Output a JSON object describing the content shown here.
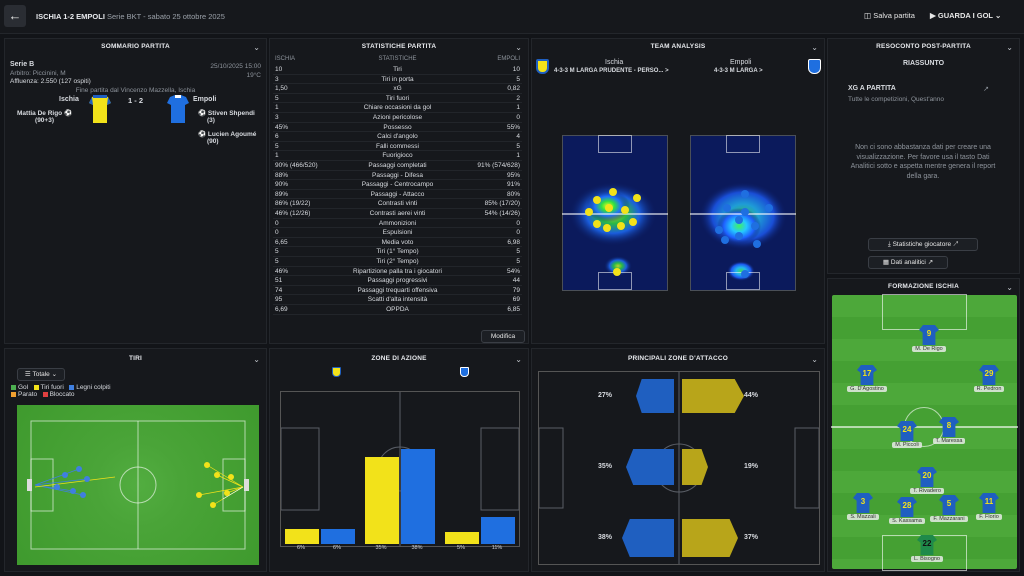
{
  "header": {
    "title": "ISCHIA 1-2 EMPOLI",
    "competition": "Serie BKT",
    "date": "sabato 25 ottobre 2025",
    "save_label": "Salva partita",
    "goals_label": "GUARDA I GOL"
  },
  "summary": {
    "title": "SOMMARIO PARTITA",
    "league": "Serie B",
    "referee": "Arbitro: Piccinini, M",
    "attendance": "Affluenza: 2.550 (127 ospiti)",
    "datetime": "25/10/2025 15:00",
    "temp": "19°C",
    "end_note": "Fine partita dal Vincenzo Mazzella, Ischia",
    "home": "Ischia",
    "away": "Empoli",
    "score": "1 - 2",
    "home_scorer": "Mattia De Rigo",
    "home_scorer_min": "(90+3)",
    "away_scorer1": "Stiven Shpendi",
    "away_scorer1_min": "(3)",
    "away_scorer2": "Lucien Agoumé",
    "away_scorer2_min": "(90)"
  },
  "stats": {
    "title": "STATISTICHE PARTITA",
    "h_home": "ISCHIA",
    "h_mid": "STATISTICHE",
    "h_away": "EMPOLI",
    "edit_label": "Modifica",
    "rows": [
      [
        "10",
        "Tiri",
        "10"
      ],
      [
        "3",
        "Tiri in porta",
        "5"
      ],
      [
        "1,50",
        "xG",
        "0,82"
      ],
      [
        "5",
        "Tiri fuori",
        "2"
      ],
      [
        "1",
        "Chiare occasioni da gol",
        "1"
      ],
      [
        "3",
        "Azioni pericolose",
        "0"
      ],
      [
        "45%",
        "Possesso",
        "55%"
      ],
      [
        "6",
        "Calci d'angolo",
        "4"
      ],
      [
        "5",
        "Falli commessi",
        "5"
      ],
      [
        "1",
        "Fuorigioco",
        "1"
      ],
      [
        "90% (466/520)",
        "Passaggi completati",
        "91% (574/628)"
      ],
      [
        "88%",
        "Passaggi - Difesa",
        "95%"
      ],
      [
        "90%",
        "Passaggi - Centrocampo",
        "91%"
      ],
      [
        "89%",
        "Passaggi - Attacco",
        "80%"
      ],
      [
        "86% (19/22)",
        "Contrasti vinti",
        "85% (17/20)"
      ],
      [
        "46% (12/26)",
        "Contrasti aerei vinti",
        "54% (14/26)"
      ],
      [
        "0",
        "Ammonizioni",
        "0"
      ],
      [
        "0",
        "Espulsioni",
        "0"
      ],
      [
        "6,65",
        "Media voto",
        "6,98"
      ],
      [
        "5",
        "Tiri (1° Tempo)",
        "5"
      ],
      [
        "5",
        "Tiri (2° Tempo)",
        "5"
      ],
      [
        "46%",
        "Ripartizione palla tra i giocatori",
        "54%"
      ],
      [
        "51",
        "Passaggi progressivi",
        "44"
      ],
      [
        "74",
        "Passaggi trequarti offensiva",
        "79"
      ],
      [
        "95",
        "Scatti d'alta intensità",
        "69"
      ],
      [
        "6,69",
        "OPPDA",
        "6,85"
      ]
    ]
  },
  "team_analysis": {
    "title": "TEAM ANALYSIS",
    "home": "Ischia",
    "home_form": "4-3-3 M LARGA PRUDENTE - PERSO... >",
    "away": "Empoli",
    "away_form": "4-3-3 M LARGA >"
  },
  "report": {
    "title": "RESOCONTO POST-PARTITA",
    "subtitle": "RIASSUNTO",
    "xg_title": "XG A PARTITA",
    "xg_sub": "Tutte le competizioni, Quest'anno",
    "message": "Non ci sono abbastanza dati per creare una visualizzazione. Per favore usa il tasto Dati Analitici sotto e aspetta mentre genera il report della gara.",
    "btn_stats": "Statistiche giocatore",
    "btn_data": "Dati analitici"
  },
  "shots": {
    "title": "TIRI",
    "filter": "Totale",
    "legend": [
      {
        "label": "Gol",
        "color": "#4caf50"
      },
      {
        "label": "Tiri fuori",
        "color": "#f2e21a"
      },
      {
        "label": "Legni colpiti",
        "color": "#3f7fe0"
      },
      {
        "label": "Parato",
        "color": "#f0a030"
      },
      {
        "label": "Bloccato",
        "color": "#e04040"
      }
    ]
  },
  "zones": {
    "title": "ZONE DI AZIONE",
    "chart_data": {
      "type": "bar",
      "categories": [
        "Difesa",
        "Centrocampo",
        "Attacco"
      ],
      "series": [
        {
          "name": "Ischia",
          "values": [
            6,
            35,
            5
          ]
        },
        {
          "name": "Empoli",
          "values": [
            6,
            38,
            11
          ]
        }
      ],
      "labels": [
        "6%",
        "6%",
        "35%",
        "38%",
        "5%",
        "11%"
      ]
    }
  },
  "attack": {
    "title": "PRINCIPALI ZONE D'ATTACCO",
    "home": [
      "27%",
      "35%",
      "38%"
    ],
    "away": [
      "44%",
      "19%",
      "37%"
    ]
  },
  "lineup": {
    "title": "FORMAZIONE ISCHIA",
    "players": [
      {
        "num": "9",
        "name": "M. De Rigo"
      },
      {
        "num": "17",
        "name": "G. D'Agostino"
      },
      {
        "num": "29",
        "name": "R. Pedron"
      },
      {
        "num": "24",
        "name": "M. Piccoli"
      },
      {
        "num": "8",
        "name": "T. Maressa"
      },
      {
        "num": "20",
        "name": "T. Rivadero"
      },
      {
        "num": "3",
        "name": "S. Mazzali"
      },
      {
        "num": "28",
        "name": "S. Kassama"
      },
      {
        "num": "5",
        "name": "F. Mazzarani"
      },
      {
        "num": "11",
        "name": "F. Florio"
      },
      {
        "num": "22",
        "name": "L. Bisogno"
      }
    ]
  },
  "colors": {
    "home": "#f2e21a",
    "away": "#1f6fe0",
    "bg": "#16181c"
  }
}
